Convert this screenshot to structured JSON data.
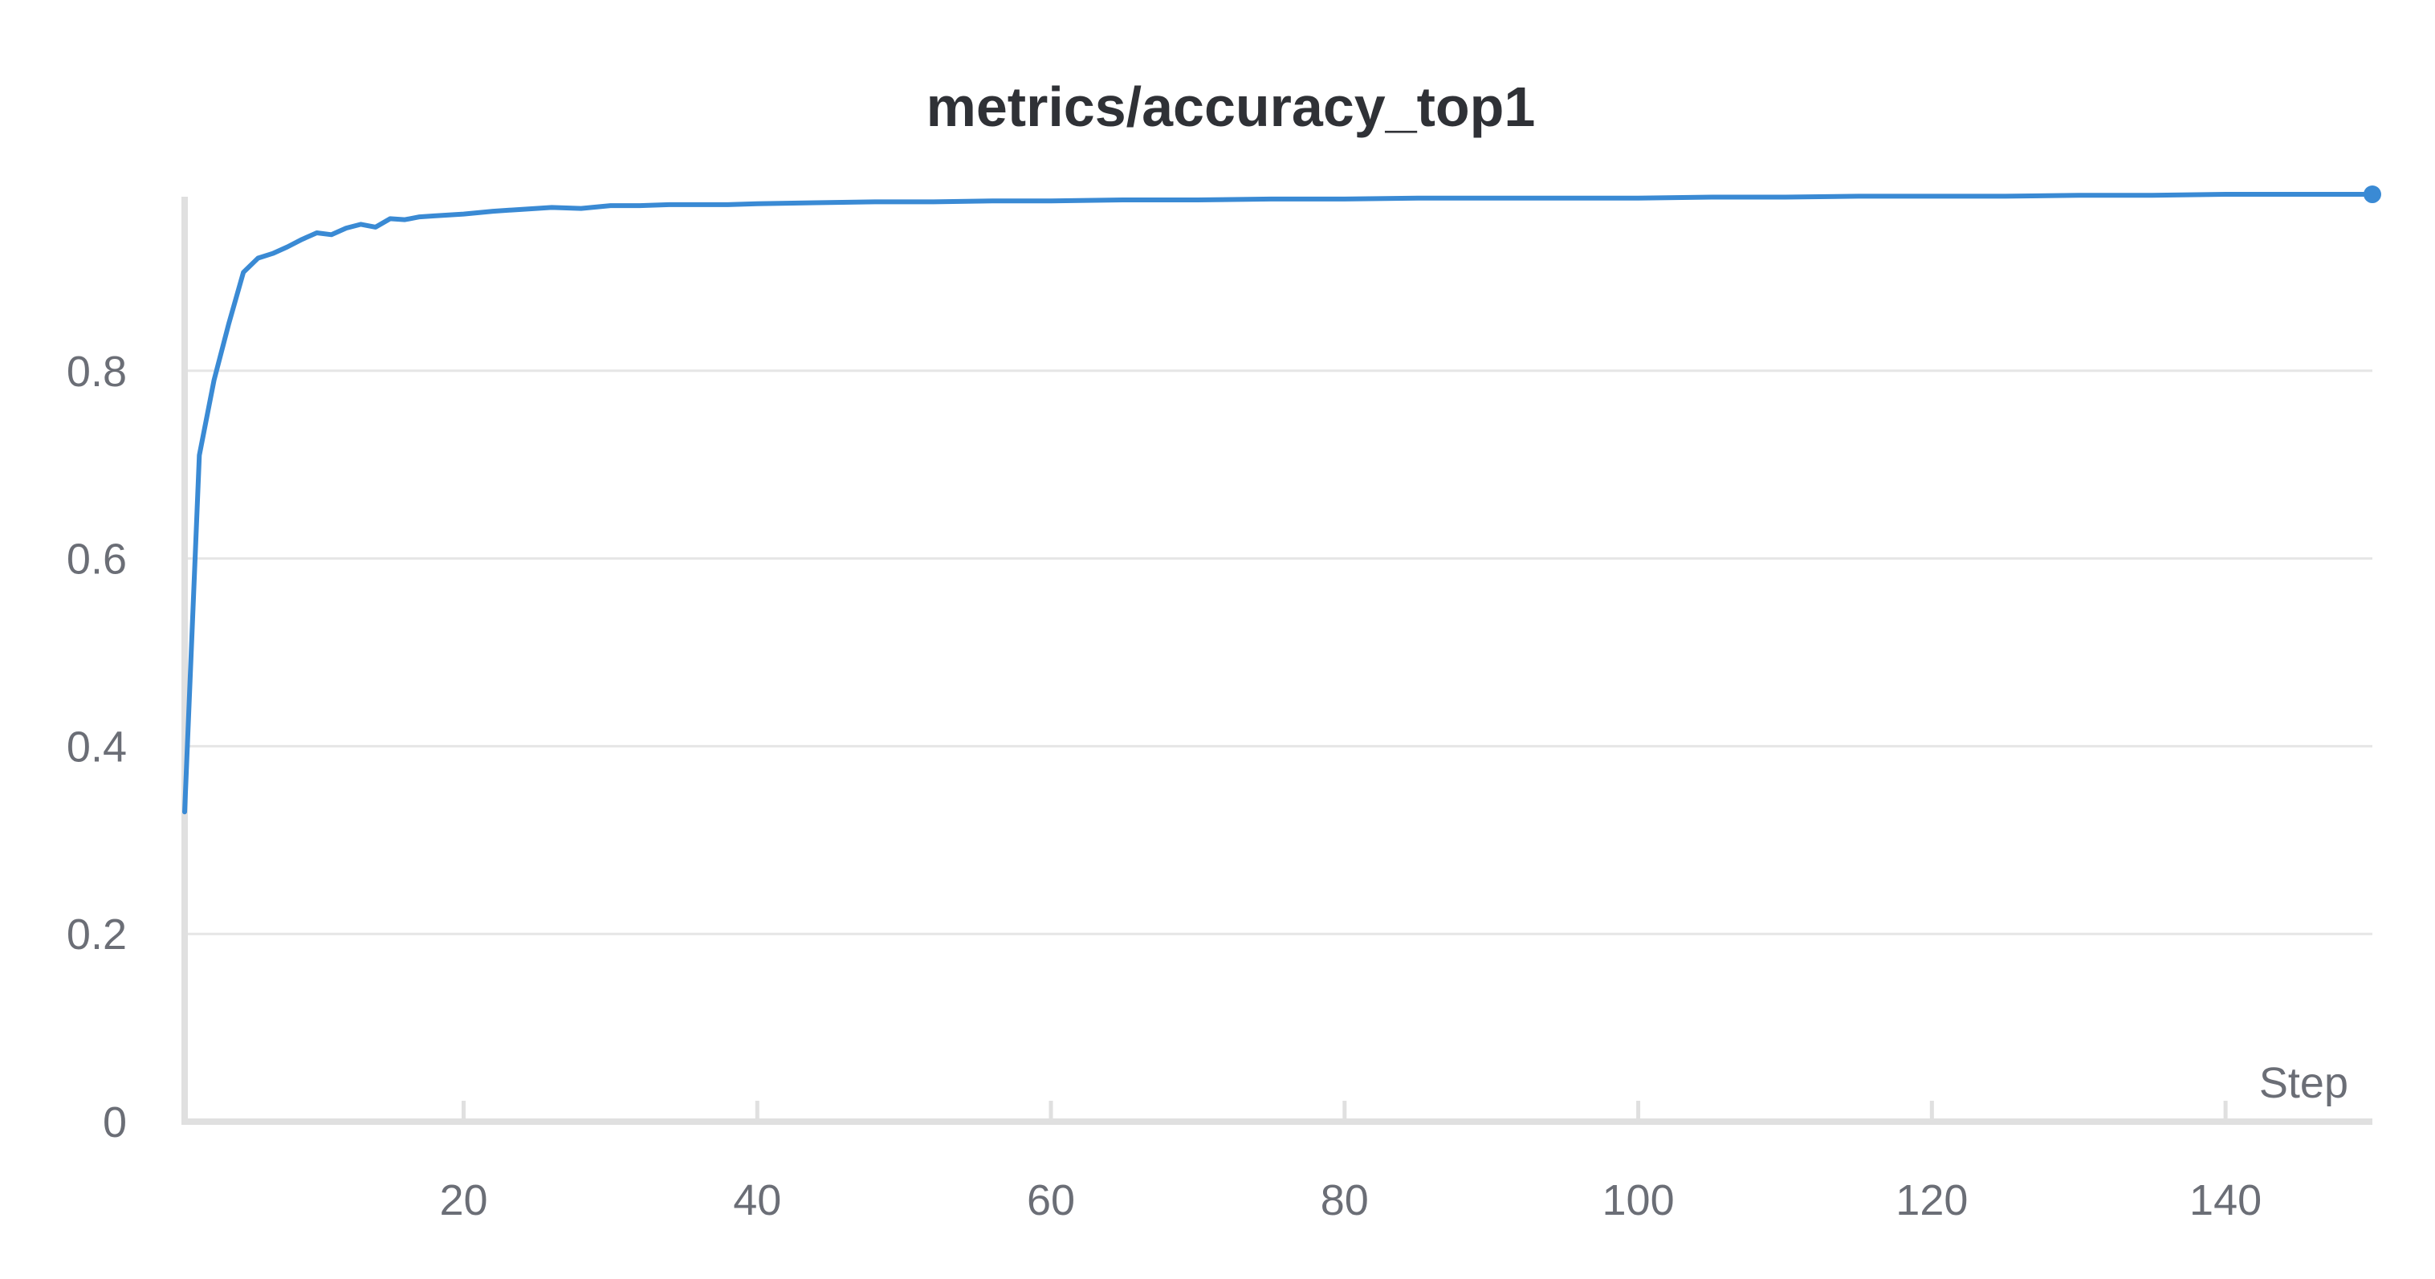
{
  "chart_data": {
    "type": "line",
    "title": "metrics/accuracy_top1",
    "xlabel": "Step",
    "ylabel": "",
    "xlim": [
      1,
      150
    ],
    "ylim": [
      0,
      1
    ],
    "yticks": [
      0,
      0.2,
      0.4,
      0.6,
      0.8
    ],
    "ytick_labels": [
      "0",
      "0.2",
      "0.4",
      "0.6",
      "0.8"
    ],
    "xticks": [
      20,
      40,
      60,
      80,
      100,
      120,
      140
    ],
    "xtick_labels": [
      "20",
      "40",
      "60",
      "80",
      "100",
      "120",
      "140"
    ],
    "grid": true,
    "legend": "none",
    "colors": {
      "series": "#3a8ad4",
      "grid": "#e6e6e6",
      "axis": "#e0e0e0"
    },
    "series": [
      {
        "x": [
          1,
          2,
          3,
          4,
          5,
          6,
          7,
          8,
          9,
          10,
          11,
          12,
          13,
          14,
          15,
          16,
          17,
          18,
          19,
          20,
          22,
          24,
          26,
          28,
          30,
          32,
          34,
          36,
          38,
          40,
          44,
          48,
          52,
          56,
          60,
          65,
          70,
          75,
          80,
          85,
          90,
          95,
          100,
          105,
          110,
          115,
          120,
          125,
          130,
          135,
          140,
          145,
          150
        ],
        "y": [
          0.33,
          0.71,
          0.79,
          0.85,
          0.905,
          0.92,
          0.925,
          0.932,
          0.94,
          0.947,
          0.945,
          0.952,
          0.956,
          0.953,
          0.962,
          0.961,
          0.964,
          0.965,
          0.966,
          0.967,
          0.97,
          0.972,
          0.974,
          0.973,
          0.976,
          0.976,
          0.977,
          0.977,
          0.977,
          0.978,
          0.979,
          0.98,
          0.98,
          0.981,
          0.981,
          0.982,
          0.982,
          0.983,
          0.983,
          0.984,
          0.984,
          0.984,
          0.984,
          0.985,
          0.985,
          0.986,
          0.986,
          0.986,
          0.987,
          0.987,
          0.988,
          0.988,
          0.988
        ]
      }
    ]
  }
}
